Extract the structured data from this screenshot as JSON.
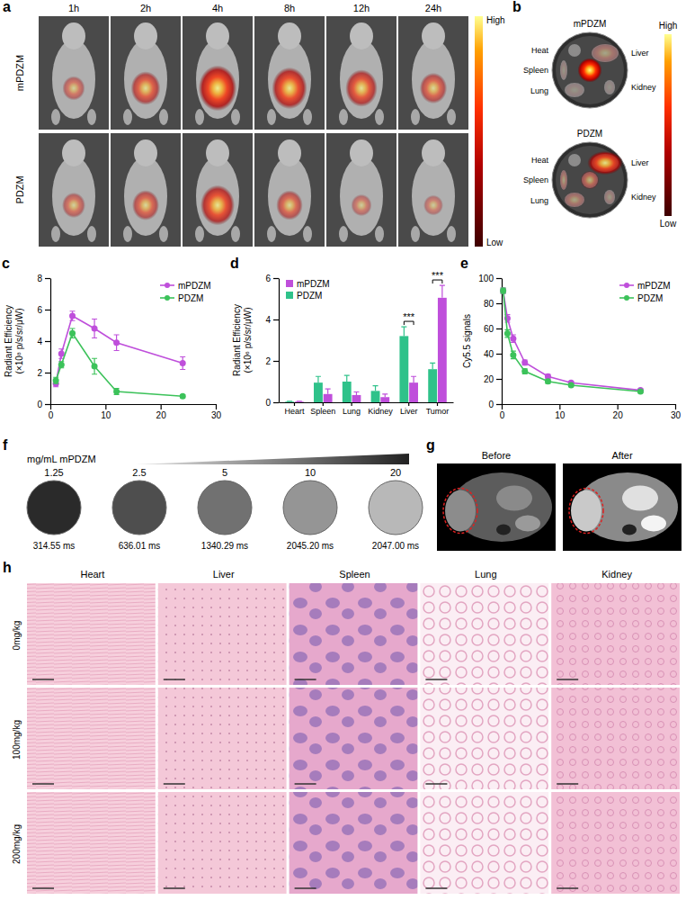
{
  "panel_a": {
    "panel_label": "a",
    "time_points": [
      "1h",
      "2h",
      "4h",
      "8h",
      "12h",
      "24h"
    ],
    "groups": [
      "mPDZM",
      "PDZM"
    ],
    "colorbar": {
      "high": "High",
      "low": "Low"
    }
  },
  "panel_b": {
    "panel_label": "b",
    "groups": [
      "mPDZM",
      "PDZM"
    ],
    "organs": [
      "Heat",
      "Liver",
      "Spleen",
      "Lung",
      "Kidney"
    ],
    "colorbar": {
      "high": "High",
      "low": "Low"
    }
  },
  "chart_data": [
    {
      "panel_label": "c",
      "type": "line",
      "y_label": "Radiant Efficiency (×10⁸ p/s/sr/μW)",
      "x": [
        1,
        2,
        4,
        8,
        12,
        24
      ],
      "xlim": [
        0,
        30
      ],
      "xticks": [
        0,
        10,
        20,
        30
      ],
      "ylim": [
        0,
        8
      ],
      "yticks": [
        0,
        2,
        4,
        6,
        8
      ],
      "legend": "upper right",
      "marker": "circle",
      "series": [
        {
          "name": "mPDZM",
          "color": "#bf4fdb",
          "values": [
            1.3,
            3.2,
            5.6,
            4.8,
            3.9,
            2.6
          ],
          "errors": [
            0.2,
            0.3,
            0.3,
            0.6,
            0.5,
            0.4
          ]
        },
        {
          "name": "PDZM",
          "color": "#3cc25a",
          "values": [
            1.5,
            2.5,
            4.5,
            2.4,
            0.8,
            0.5
          ],
          "errors": [
            0.2,
            0.2,
            0.3,
            0.5,
            0.2,
            0.1
          ]
        }
      ]
    },
    {
      "panel_label": "d",
      "type": "bar",
      "y_label": "Radiant Efficiency (×10⁶ p/s/sr/μW)",
      "categories": [
        "Heart",
        "Spleen",
        "Lung",
        "Kidney",
        "Liver",
        "Tumor"
      ],
      "ylim": [
        0,
        6
      ],
      "yticks": [
        0,
        2,
        4,
        6
      ],
      "legend": "upper left",
      "series": [
        {
          "name": "mPDZM",
          "color": "#bf4fdb",
          "values": [
            0.03,
            0.4,
            0.35,
            0.25,
            0.95,
            5.05
          ],
          "errors": [
            0.02,
            0.25,
            0.15,
            0.15,
            0.3,
            0.6
          ]
        },
        {
          "name": "PDZM",
          "color": "#2fc28a",
          "values": [
            0.03,
            0.95,
            1.0,
            0.55,
            3.2,
            1.6
          ],
          "errors": [
            0.02,
            0.3,
            0.3,
            0.25,
            0.45,
            0.3
          ]
        }
      ],
      "annotations": [
        {
          "category": "Liver",
          "text": "***"
        },
        {
          "category": "Tumor",
          "text": "***"
        }
      ]
    },
    {
      "panel_label": "e",
      "type": "line",
      "y_label": "Cy5.5 signals",
      "x": [
        0.25,
        1,
        2,
        4,
        8,
        12,
        24
      ],
      "xlim": [
        0,
        30
      ],
      "xticks": [
        0,
        10,
        20,
        30
      ],
      "ylim": [
        0,
        100
      ],
      "yticks": [
        0,
        20,
        40,
        60,
        80,
        100
      ],
      "legend": "upper right",
      "marker": "circle",
      "series": [
        {
          "name": "mPDZM",
          "color": "#bf4fdb",
          "values": [
            90,
            68,
            52,
            33,
            22,
            17,
            11
          ],
          "errors": [
            2,
            3,
            3,
            2,
            1.5,
            1,
            1
          ]
        },
        {
          "name": "PDZM",
          "color": "#3cc25a",
          "values": [
            90,
            56,
            39,
            26,
            18,
            15,
            10
          ],
          "errors": [
            2,
            3,
            3,
            2,
            1.5,
            1,
            1
          ]
        }
      ]
    }
  ],
  "panel_f": {
    "panel_label": "f",
    "title": "mg/mL mPDZM",
    "concentrations": [
      1.25,
      2.5,
      5,
      10,
      20
    ],
    "relaxation_times": [
      "314.55 ms",
      "636.01 ms",
      "1340.29 ms",
      "2045.20 ms",
      "2047.00 ms"
    ]
  },
  "panel_g": {
    "panel_label": "g",
    "images": [
      "Before",
      "After"
    ]
  },
  "panel_h": {
    "panel_label": "h",
    "columns": [
      "Heart",
      "Liver",
      "Spleen",
      "Lung",
      "Kidney"
    ],
    "rows": [
      "0mg/kg",
      "100mg/kg",
      "200mg/kg"
    ]
  }
}
